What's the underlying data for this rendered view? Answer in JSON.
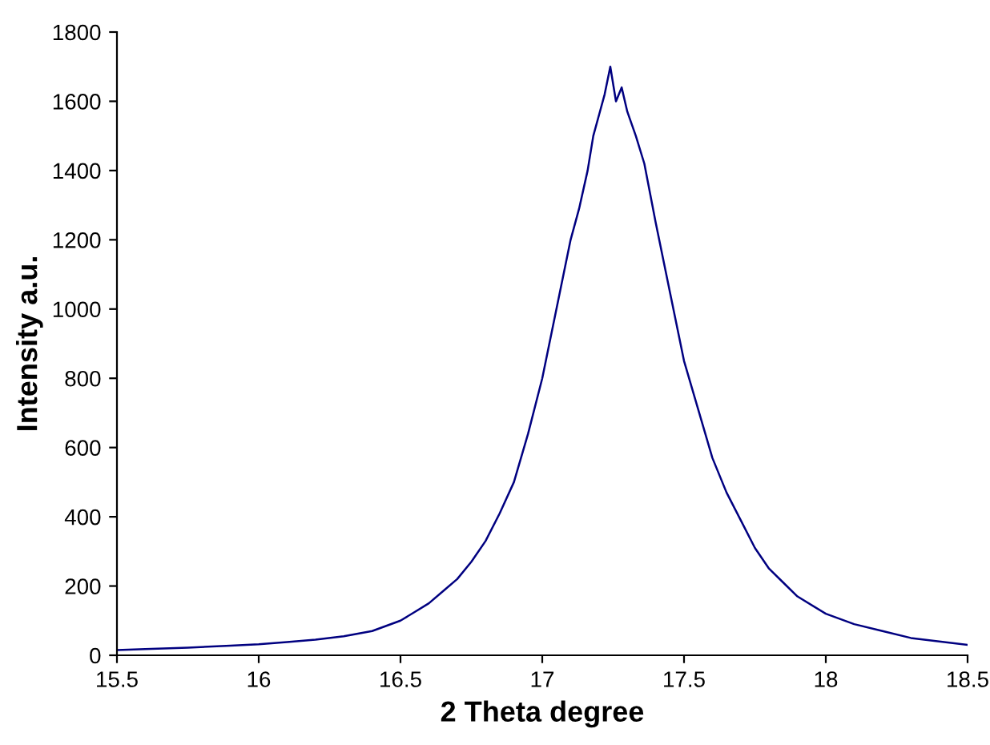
{
  "chart_data": {
    "type": "line",
    "xlabel": "2 Theta degree",
    "ylabel": "Intensity a.u.",
    "series": [
      {
        "color": "#000080",
        "x": [
          15.5,
          15.6,
          15.75,
          15.9,
          16.0,
          16.1,
          16.2,
          16.3,
          16.4,
          16.5,
          16.55,
          16.6,
          16.65,
          16.7,
          16.75,
          16.8,
          16.85,
          16.9,
          16.95,
          17.0,
          17.05,
          17.1,
          17.13,
          17.16,
          17.18,
          17.2,
          17.22,
          17.24,
          17.26,
          17.28,
          17.3,
          17.33,
          17.36,
          17.4,
          17.45,
          17.5,
          17.55,
          17.6,
          17.65,
          17.7,
          17.75,
          17.8,
          17.85,
          17.9,
          18.0,
          18.1,
          18.2,
          18.3,
          18.4,
          18.5
        ],
        "values": [
          15,
          18,
          22,
          28,
          32,
          38,
          45,
          55,
          70,
          100,
          125,
          150,
          185,
          220,
          270,
          330,
          410,
          500,
          640,
          800,
          1000,
          1200,
          1290,
          1400,
          1500,
          1560,
          1620,
          1700,
          1600,
          1640,
          1570,
          1500,
          1420,
          1250,
          1050,
          850,
          710,
          570,
          470,
          390,
          310,
          250,
          210,
          170,
          120,
          90,
          70,
          50,
          40,
          30
        ]
      }
    ],
    "xlim": [
      15.5,
      18.5
    ],
    "xticks": [
      15.5,
      16,
      16.5,
      17,
      17.5,
      18,
      18.5
    ],
    "ylim": [
      0,
      1800
    ],
    "yticks": [
      0,
      200,
      400,
      600,
      800,
      1000,
      1200,
      1400,
      1600,
      1800
    ],
    "grid": false,
    "legend": false,
    "marker": "none",
    "line_style": "solid"
  }
}
